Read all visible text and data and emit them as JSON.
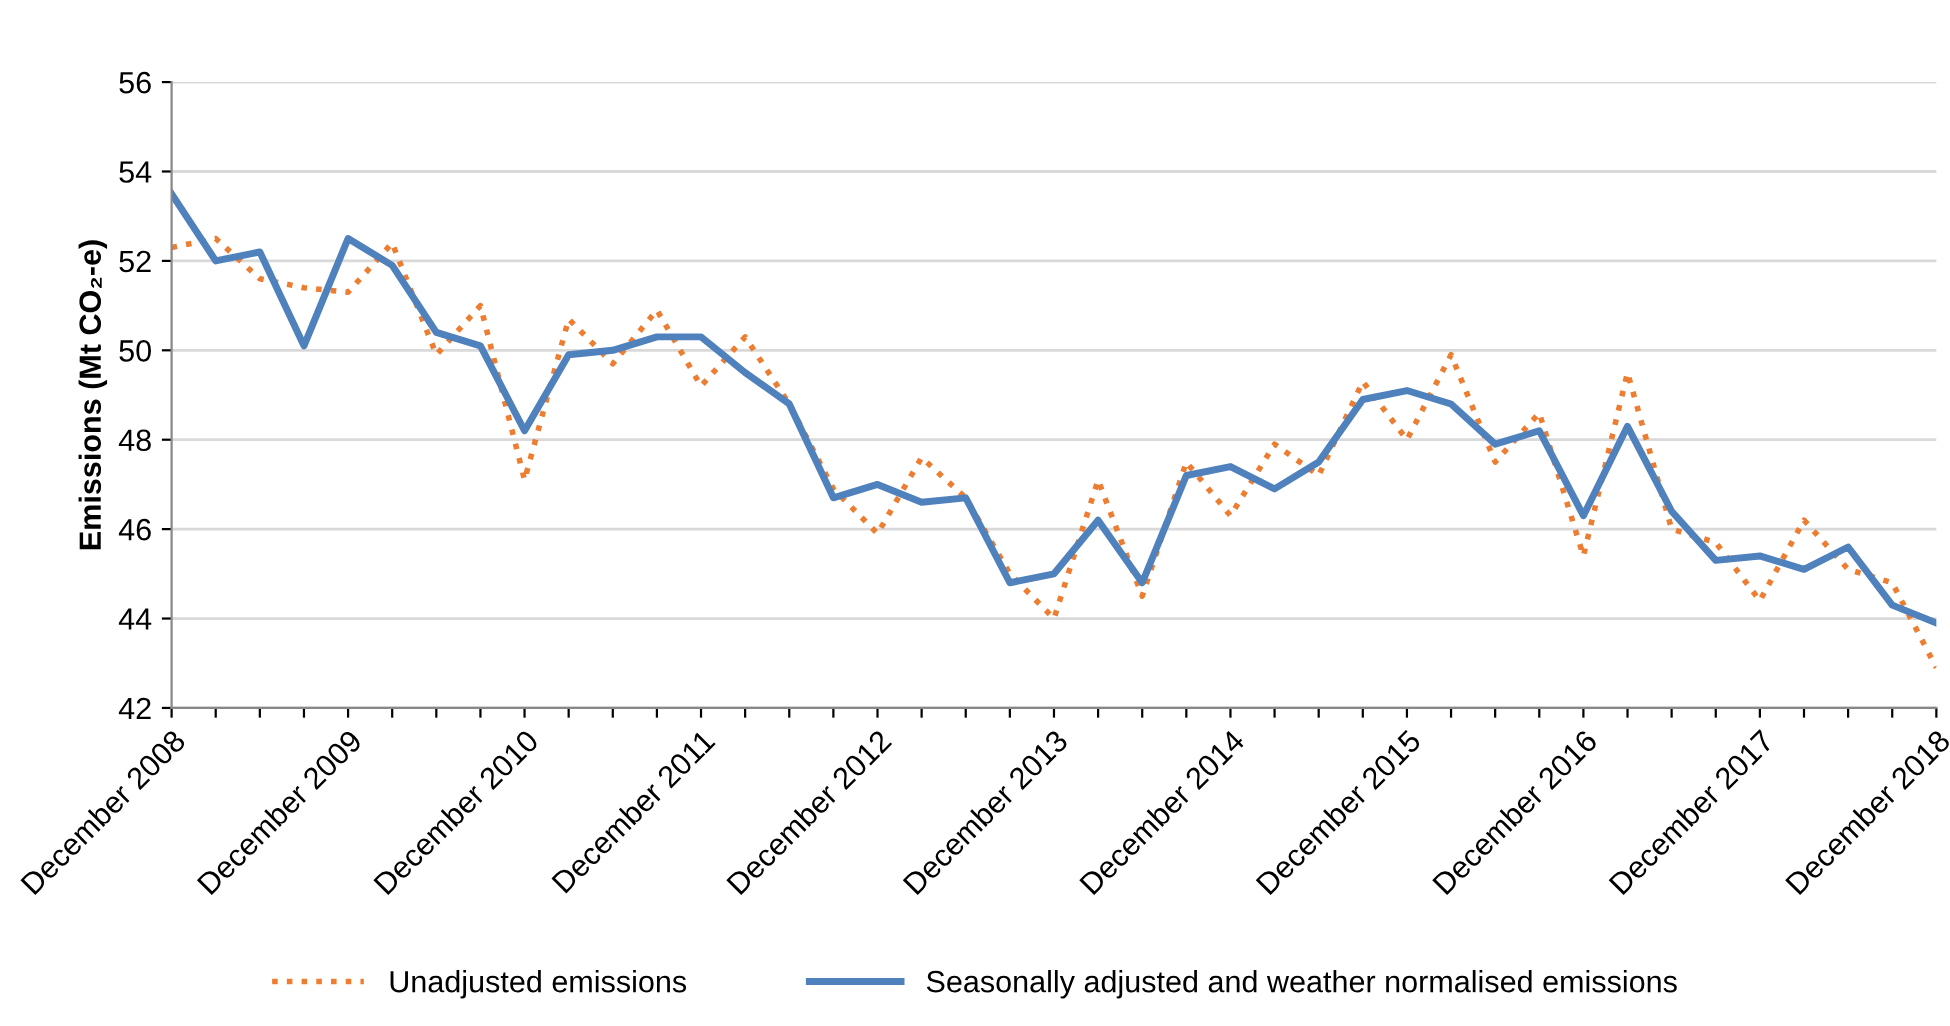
{
  "chart_data": {
    "type": "line",
    "ylabel": "Emissions (Mt CO₂-e)",
    "categories": [
      "December 2008",
      null,
      null,
      null,
      "December 2009",
      null,
      null,
      null,
      "December 2010",
      null,
      null,
      null,
      "December 2011",
      null,
      null,
      null,
      "December 2012",
      null,
      null,
      null,
      "December 2013",
      null,
      null,
      null,
      "December 2014",
      null,
      null,
      null,
      "December 2015",
      null,
      null,
      null,
      "December 2016",
      null,
      null,
      null,
      "December 2017",
      null,
      null,
      null,
      "December 2018"
    ],
    "series": [
      {
        "name": "Unadjusted emissions",
        "color": "#ed7d31",
        "line_style": "dotted",
        "values": [
          52.3,
          52.5,
          51.6,
          51.4,
          51.3,
          52.4,
          49.9,
          51.0,
          47.1,
          50.7,
          49.7,
          50.9,
          49.2,
          50.3,
          48.8,
          46.9,
          45.9,
          47.6,
          46.7,
          45.0,
          44.0,
          47.1,
          44.5,
          47.5,
          46.3,
          47.9,
          47.2,
          49.3,
          48.0,
          49.9,
          47.5,
          48.6,
          45.4,
          49.5,
          46.0,
          45.7,
          44.4,
          46.2,
          45.1,
          44.8,
          42.9
        ]
      },
      {
        "name": "Seasonally adjusted and weather normalised emissions",
        "color": "#4f81bd",
        "line_style": "solid",
        "values": [
          53.5,
          52.0,
          52.2,
          50.1,
          52.5,
          51.9,
          50.4,
          50.1,
          48.2,
          49.9,
          50.0,
          50.3,
          50.3,
          49.5,
          48.8,
          46.7,
          47.0,
          46.6,
          46.7,
          44.8,
          45.0,
          46.2,
          44.8,
          47.2,
          47.4,
          46.9,
          47.5,
          48.9,
          49.1,
          48.8,
          47.9,
          48.2,
          46.3,
          48.3,
          46.4,
          45.3,
          45.4,
          45.1,
          45.6,
          44.3,
          43.9
        ]
      }
    ],
    "ylim": [
      42,
      56
    ],
    "yticks": [
      42,
      44,
      46,
      48,
      50,
      52,
      54,
      56
    ],
    "grid": "y",
    "legend": "bottom",
    "marker": "none"
  }
}
